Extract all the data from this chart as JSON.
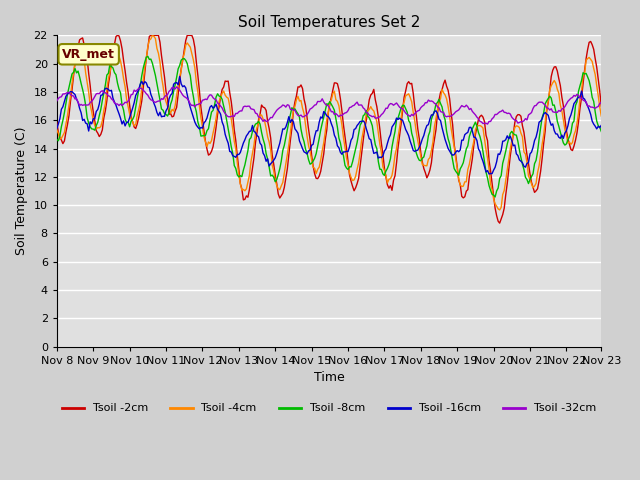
{
  "title": "Soil Temperatures Set 2",
  "xlabel": "Time",
  "ylabel": "Soil Temperature (C)",
  "ylim": [
    0,
    22
  ],
  "bg_color": "#d0d0d0",
  "plot_bg": "#e0e0e0",
  "annotation_label": "VR_met",
  "x_tick_labels": [
    "Nov 8",
    "Nov 9",
    "Nov 10",
    "Nov 11",
    "Nov 12",
    "Nov 13",
    "Nov 14",
    "Nov 15",
    "Nov 16",
    "Nov 17",
    "Nov 18",
    "Nov 19",
    "Nov 20",
    "Nov 21",
    "Nov 22",
    "Nov 23"
  ],
  "legend": [
    {
      "label": "Tsoil -2cm",
      "color": "#cc0000"
    },
    {
      "label": "Tsoil -4cm",
      "color": "#ff8800"
    },
    {
      "label": "Tsoil -8cm",
      "color": "#00bb00"
    },
    {
      "label": "Tsoil -16cm",
      "color": "#0000cc"
    },
    {
      "label": "Tsoil -32cm",
      "color": "#9900cc"
    }
  ],
  "n_days": 15,
  "seed": 42,
  "noise_scale": 0.12
}
